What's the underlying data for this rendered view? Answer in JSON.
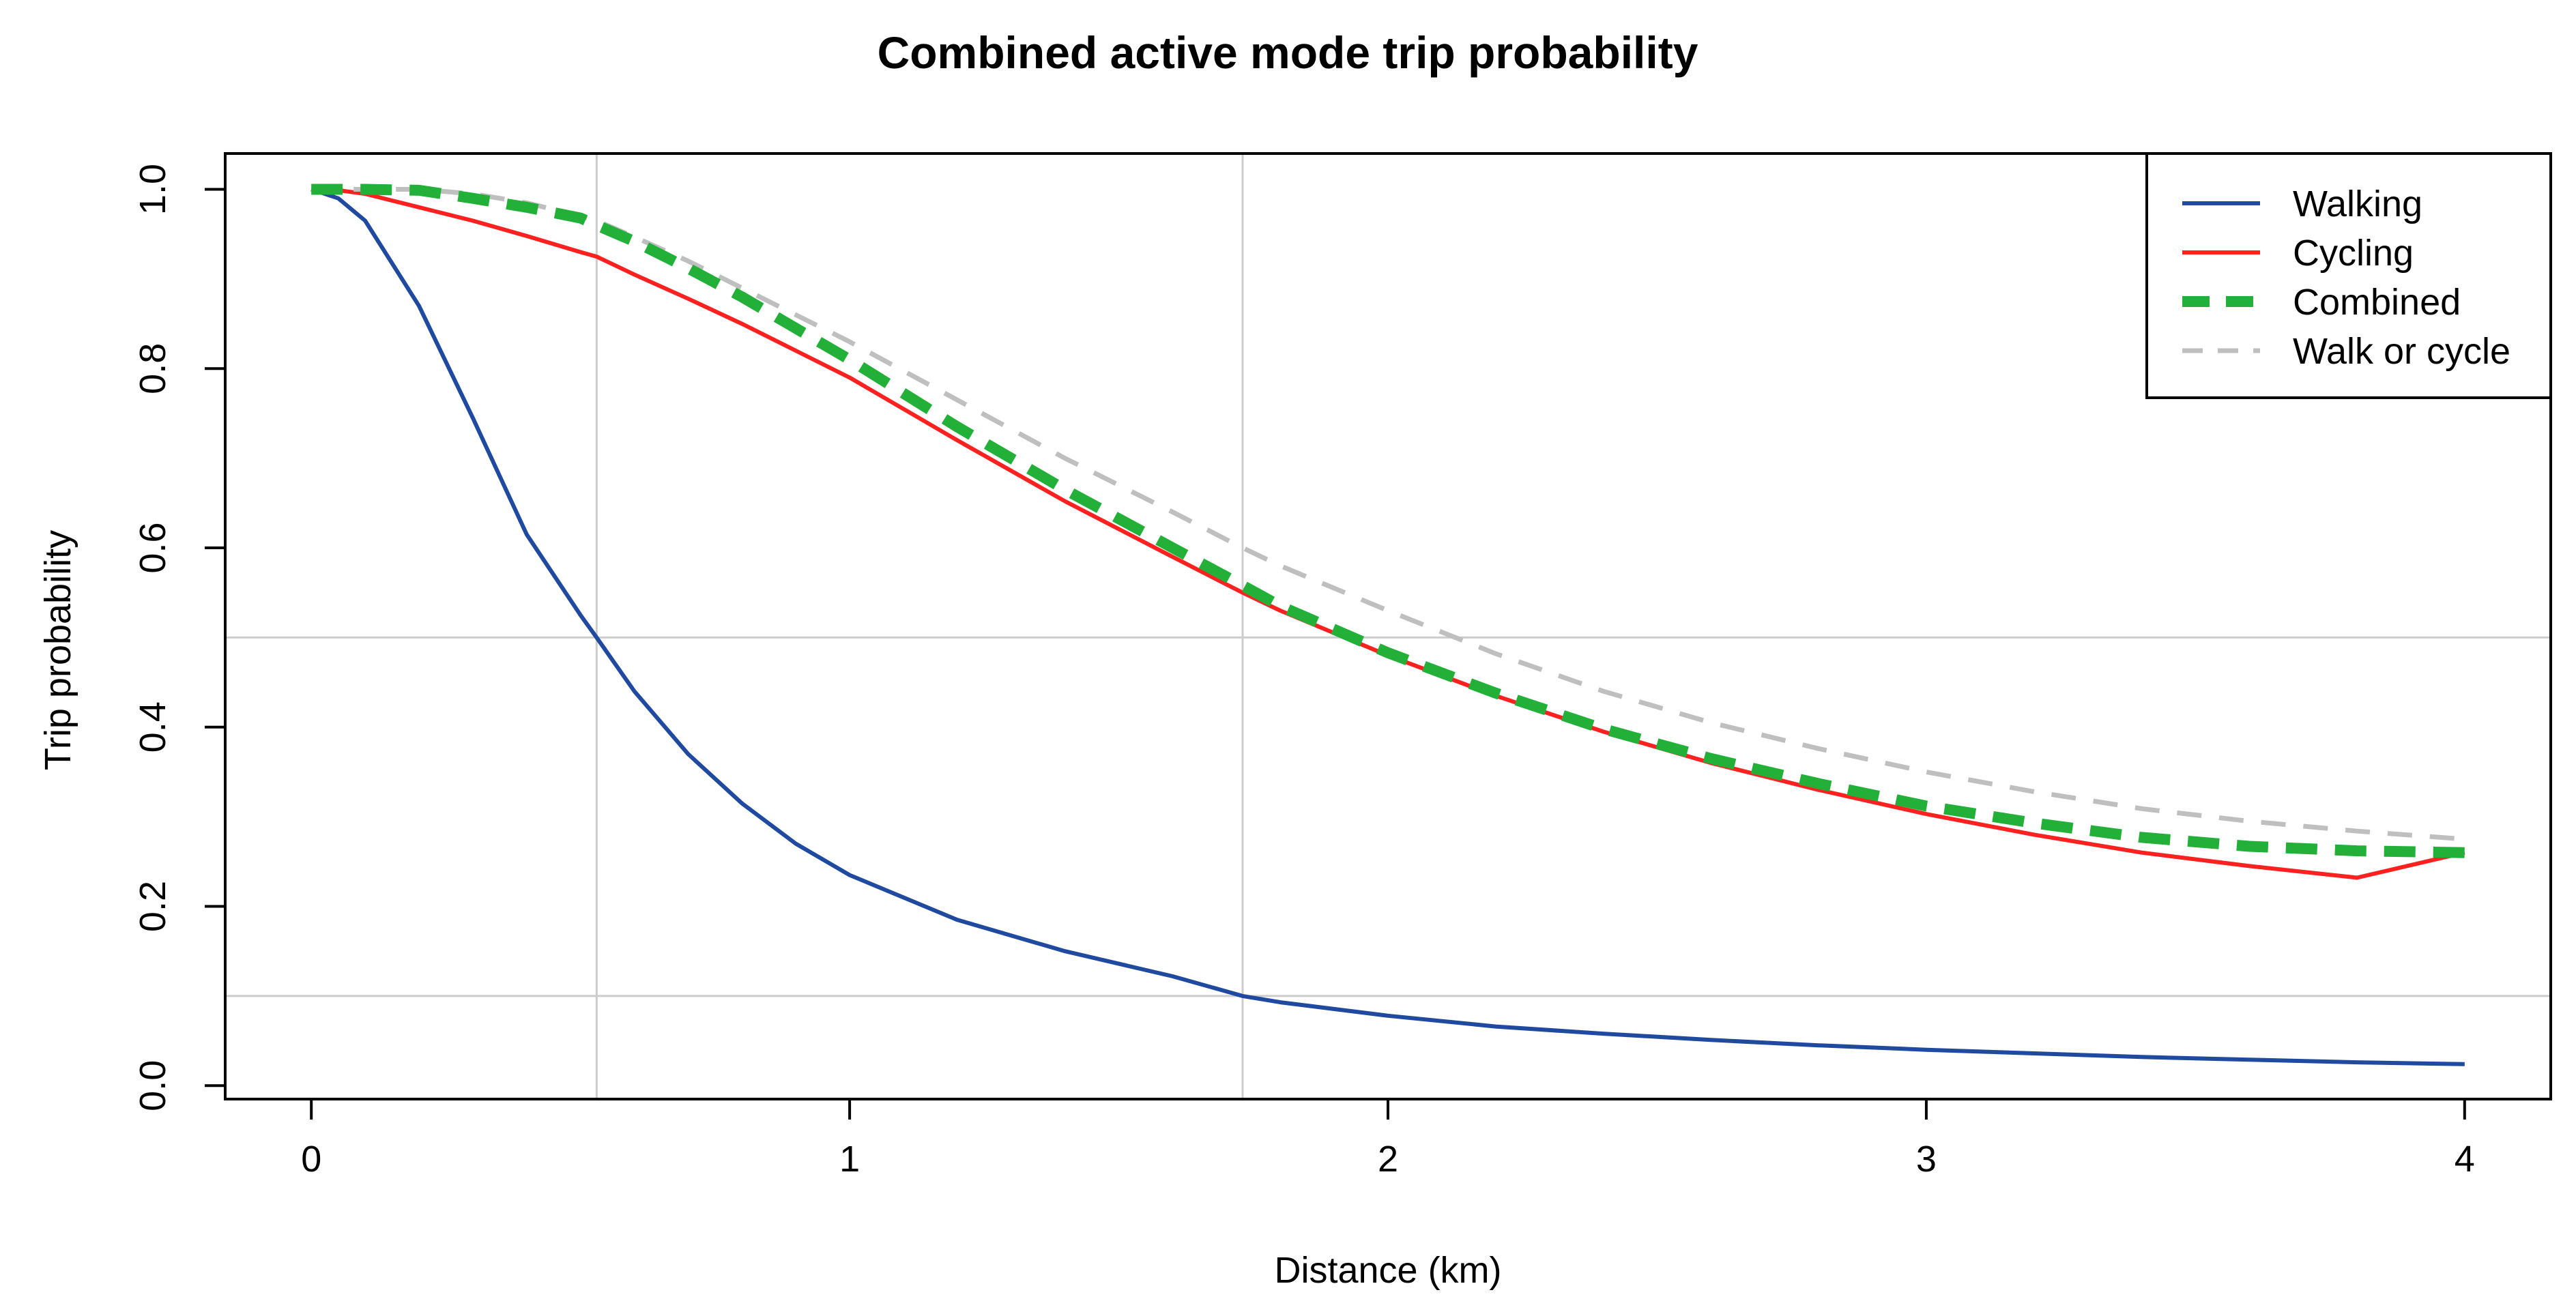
{
  "chart_data": {
    "type": "line",
    "title": "Combined active mode trip probability",
    "xlabel": "Distance (km)",
    "ylabel": "Trip probability",
    "xlim": [
      -0.16,
      4.16
    ],
    "ylim": [
      -0.015,
      1.04
    ],
    "xticks": [
      0,
      1,
      2,
      3,
      4
    ],
    "xtick_labels": [
      "0",
      "1",
      "2",
      "3",
      "4"
    ],
    "yticks": [
      0.0,
      0.2,
      0.4,
      0.6,
      0.8,
      1.0
    ],
    "ytick_labels": [
      "0.0",
      "0.2",
      "0.4",
      "0.6",
      "0.8",
      "1.0"
    ],
    "reference_lines": {
      "vertical": [
        0.53,
        1.73
      ],
      "horizontal": [
        0.5,
        0.1
      ],
      "color": "#cccccc"
    },
    "legend": {
      "position": "top-right"
    },
    "x": [
      0,
      0.05,
      0.1,
      0.2,
      0.3,
      0.4,
      0.5,
      0.53,
      0.6,
      0.7,
      0.8,
      0.9,
      1.0,
      1.2,
      1.4,
      1.6,
      1.73,
      1.8,
      2.0,
      2.2,
      2.4,
      2.6,
      2.8,
      3.0,
      3.2,
      3.4,
      3.6,
      3.8,
      4.0
    ],
    "series": [
      {
        "name": "Walking",
        "color": "#1f4aa0",
        "style": "solid",
        "values": [
          1.0,
          0.99,
          0.965,
          0.87,
          0.745,
          0.615,
          0.525,
          0.5,
          0.44,
          0.37,
          0.315,
          0.27,
          0.235,
          0.185,
          0.15,
          0.122,
          0.1,
          0.093,
          0.078,
          0.066,
          0.058,
          0.051,
          0.045,
          0.04,
          0.036,
          0.032,
          0.029,
          0.026,
          0.024
        ]
      },
      {
        "name": "Cycling",
        "color": "#ff2020",
        "style": "solid",
        "values": [
          1.0,
          0.999,
          0.995,
          0.98,
          0.965,
          0.948,
          0.93,
          0.925,
          0.905,
          0.878,
          0.85,
          0.82,
          0.79,
          0.72,
          0.652,
          0.59,
          0.55,
          0.53,
          0.48,
          0.435,
          0.395,
          0.36,
          0.33,
          0.303,
          0.28,
          0.26,
          0.245,
          0.232,
          0.26
        ]
      },
      {
        "name": "Combined",
        "color": "#22b039",
        "style": "dashed-thick",
        "values": [
          1.0,
          1.0,
          1.0,
          0.999,
          0.99,
          0.98,
          0.968,
          0.96,
          0.942,
          0.912,
          0.88,
          0.845,
          0.81,
          0.735,
          0.665,
          0.6,
          0.558,
          0.535,
          0.483,
          0.438,
          0.398,
          0.365,
          0.337,
          0.312,
          0.293,
          0.277,
          0.267,
          0.262,
          0.26
        ]
      },
      {
        "name": "Walk or cycle",
        "color": "#bfbfbf",
        "style": "dashed",
        "values": [
          1.0,
          1.0,
          1.0,
          1.0,
          0.995,
          0.985,
          0.97,
          0.965,
          0.947,
          0.92,
          0.89,
          0.86,
          0.83,
          0.765,
          0.7,
          0.64,
          0.6,
          0.58,
          0.53,
          0.482,
          0.44,
          0.405,
          0.376,
          0.35,
          0.328,
          0.309,
          0.295,
          0.284,
          0.275
        ]
      }
    ]
  }
}
